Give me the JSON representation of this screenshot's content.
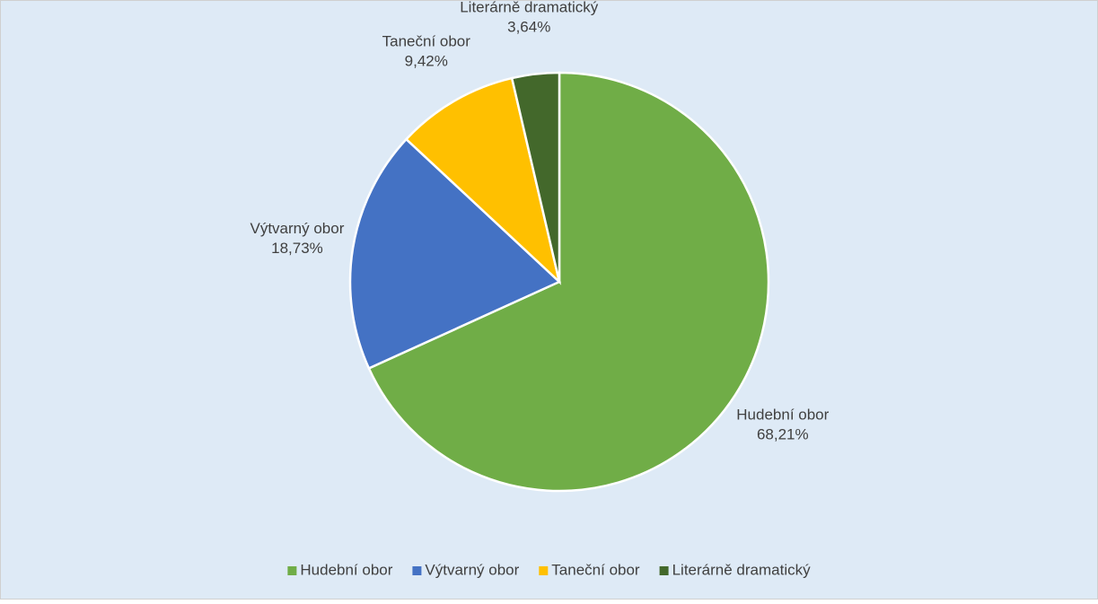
{
  "chart_data": {
    "type": "pie",
    "categories": [
      "Hudební obor",
      "Výtvarný obor",
      "Taneční obor",
      "Literárně dramatický"
    ],
    "values": [
      68.21,
      18.73,
      9.42,
      3.64
    ],
    "value_labels": [
      "68,21%",
      "18,73%",
      "9,42%",
      "3,64%"
    ],
    "colors": [
      "#70ad47",
      "#4472c4",
      "#ffc000",
      "#43682b"
    ],
    "legend": "bottom"
  }
}
